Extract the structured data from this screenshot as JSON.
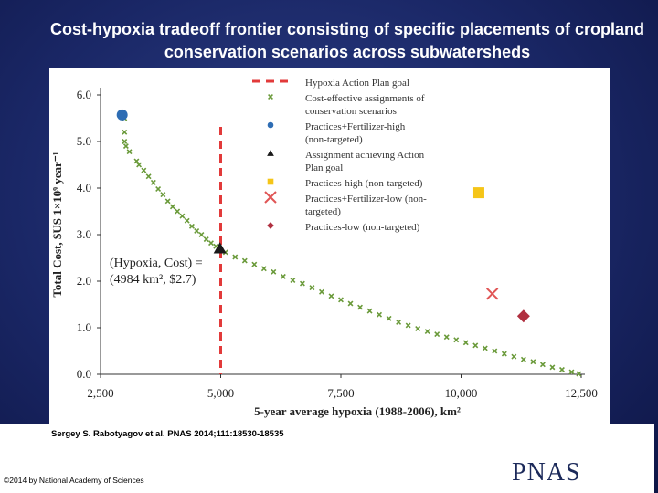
{
  "slide": {
    "title": "Cost-hypoxia tradeoff frontier consisting of specific placements of cropland conservation scenarios across subwatersheds",
    "citation": "Sergey S. Rabotyagov et al. PNAS 2014;111:18530-18535",
    "copyright": "©2014 by National Academy of Sciences",
    "publisher_logo": "PNAS"
  },
  "chart_data": {
    "type": "scatter",
    "xlabel": "5-year average hypoxia (1988-2006), km²",
    "ylabel": "Total Cost, $US 1×10⁹ year⁻¹",
    "xlim": [
      2500,
      12500
    ],
    "ylim": [
      0,
      6.0
    ],
    "x_ticks": [
      "2,500",
      "5,000",
      "7,500",
      "10,000",
      "12,500"
    ],
    "y_ticks": [
      "0.0",
      "1.0",
      "2.0",
      "3.0",
      "4.0",
      "5.0",
      "6.0"
    ],
    "annotation": {
      "line1": "(Hypoxia, Cost) =",
      "line2": "(4984 km², $2.7)"
    },
    "action_plan_goal_x": 5000,
    "series": [
      {
        "name": "Hypoxia Action Plan goal",
        "kind": "vline",
        "color": "#e23a3a"
      },
      {
        "name": "Cost-effective assignments of conservation scenarios",
        "kind": "frontier",
        "color": "#6a9a3a",
        "points": [
          [
            3000,
            5.5
          ],
          [
            3000,
            5.2
          ],
          [
            3000,
            5.0
          ],
          [
            3030,
            4.9
          ],
          [
            3100,
            4.78
          ],
          [
            3250,
            4.58
          ],
          [
            3300,
            4.5
          ],
          [
            3400,
            4.38
          ],
          [
            3500,
            4.25
          ],
          [
            3600,
            4.12
          ],
          [
            3700,
            3.98
          ],
          [
            3800,
            3.86
          ],
          [
            3900,
            3.72
          ],
          [
            4000,
            3.6
          ],
          [
            4100,
            3.5
          ],
          [
            4200,
            3.4
          ],
          [
            4300,
            3.3
          ],
          [
            4400,
            3.18
          ],
          [
            4500,
            3.08
          ],
          [
            4600,
            3.0
          ],
          [
            4700,
            2.9
          ],
          [
            4800,
            2.82
          ],
          [
            4900,
            2.75
          ],
          [
            5100,
            2.62
          ],
          [
            5300,
            2.52
          ],
          [
            5500,
            2.44
          ],
          [
            5700,
            2.36
          ],
          [
            5900,
            2.27
          ],
          [
            6100,
            2.2
          ],
          [
            6300,
            2.1
          ],
          [
            6500,
            2.02
          ],
          [
            6700,
            1.95
          ],
          [
            6900,
            1.86
          ],
          [
            7100,
            1.77
          ],
          [
            7300,
            1.68
          ],
          [
            7500,
            1.6
          ],
          [
            7700,
            1.52
          ],
          [
            7900,
            1.44
          ],
          [
            8100,
            1.36
          ],
          [
            8300,
            1.28
          ],
          [
            8500,
            1.2
          ],
          [
            8700,
            1.12
          ],
          [
            8900,
            1.05
          ],
          [
            9100,
            0.98
          ],
          [
            9300,
            0.92
          ],
          [
            9500,
            0.86
          ],
          [
            9700,
            0.8
          ],
          [
            9900,
            0.74
          ],
          [
            10100,
            0.68
          ],
          [
            10300,
            0.62
          ],
          [
            10500,
            0.56
          ],
          [
            10700,
            0.5
          ],
          [
            10900,
            0.44
          ],
          [
            11100,
            0.38
          ],
          [
            11300,
            0.32
          ],
          [
            11500,
            0.27
          ],
          [
            11700,
            0.21
          ],
          [
            11900,
            0.15
          ],
          [
            12100,
            0.1
          ],
          [
            12300,
            0.05
          ],
          [
            12450,
            0.01
          ]
        ]
      },
      {
        "name": "Practices+Fertilizer-high (non-targeted)",
        "kind": "circle",
        "color": "#2e6db4",
        "points": [
          [
            2950,
            5.57
          ]
        ]
      },
      {
        "name": "Assignment achieving Action Plan goal",
        "kind": "triangle",
        "color": "#1a1a1a",
        "points": [
          [
            4984,
            2.7
          ]
        ]
      },
      {
        "name": "Practices-high (non-targeted)",
        "kind": "square",
        "color": "#f5c518",
        "points": [
          [
            10370,
            3.9
          ]
        ]
      },
      {
        "name": "Practices+Fertilizer-low (non-targeted)",
        "kind": "x",
        "color": "#e05555",
        "points": [
          [
            10650,
            1.73
          ]
        ]
      },
      {
        "name": "Practices-low (non-targeted)",
        "kind": "diamond",
        "color": "#b03040",
        "points": [
          [
            11300,
            1.25
          ]
        ]
      }
    ],
    "legend": {
      "placement": "top-right",
      "items": [
        {
          "line1": "Hypoxia Action Plan goal",
          "line2": ""
        },
        {
          "line1": "Cost-effective assignments of",
          "line2": "conservation scenarios"
        },
        {
          "line1": "Practices+Fertilizer-high",
          "line2": "(non-targeted)"
        },
        {
          "line1": "Assignment achieving Action",
          "line2": "Plan goal"
        },
        {
          "line1": "Practices-high (non-targeted)",
          "line2": ""
        },
        {
          "line1": "Practices+Fertilizer-low (non-",
          "line2": "targeted)"
        },
        {
          "line1": "Practices-low (non-targeted)",
          "line2": ""
        }
      ]
    }
  }
}
